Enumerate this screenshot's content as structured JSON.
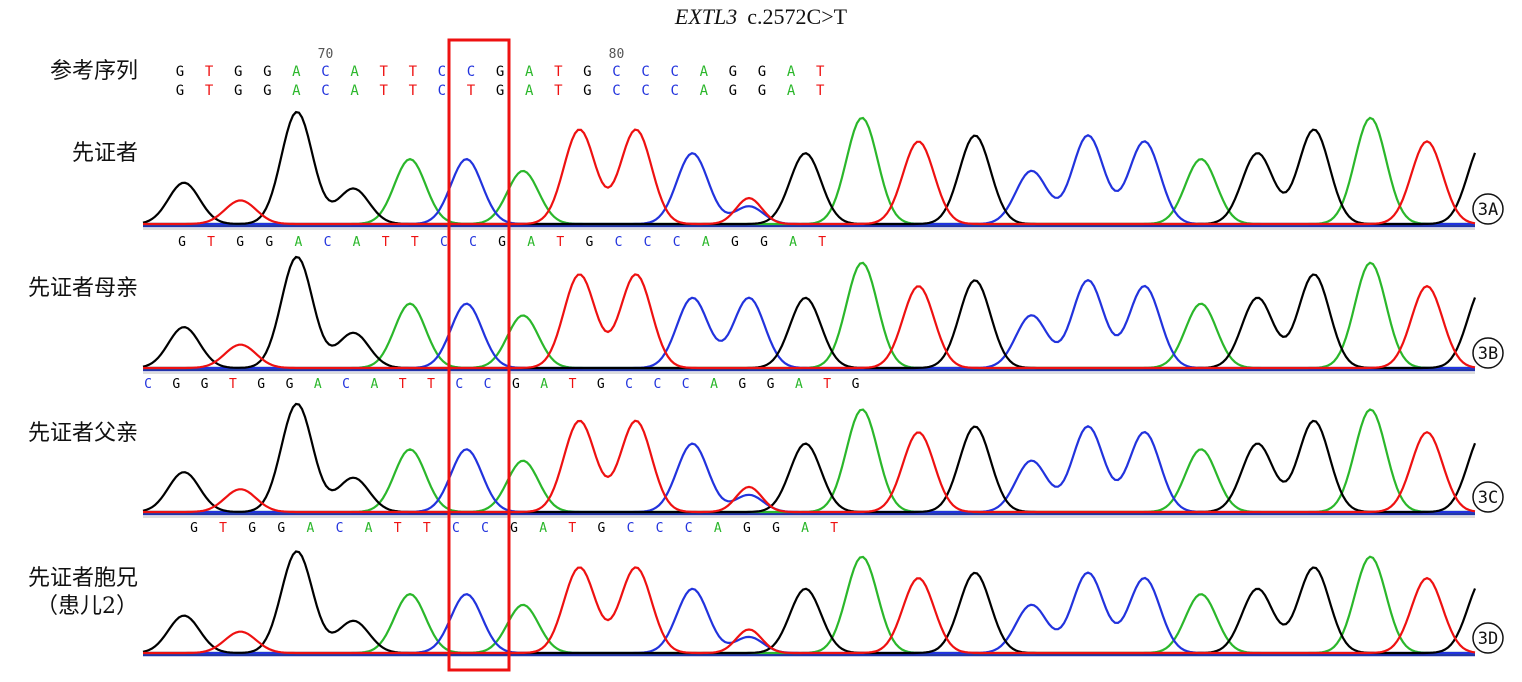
{
  "figure": {
    "gene": "EXTL3",
    "variant": "c.2572C>T"
  },
  "colors": {
    "A": "#2bb72b",
    "C": "#2233dd",
    "G": "#000000",
    "T": "#ee1111",
    "highlight": "#ee1111"
  },
  "reference_label": "参考序列",
  "position_ticks": [
    {
      "label": "70",
      "base_index": 5
    },
    {
      "label": "80",
      "base_index": 15
    }
  ],
  "reference_sequence": {
    "line1": [
      "G",
      "T",
      "G",
      "G",
      "A",
      "C",
      "A",
      "T",
      "T",
      "C",
      "C",
      "G",
      "A",
      "T",
      "G",
      "C",
      "C",
      "C",
      "A",
      "G",
      "G",
      "A",
      "T"
    ],
    "line2": [
      "G",
      "T",
      "G",
      "G",
      "A",
      "C",
      "A",
      "T",
      "T",
      "C",
      "T",
      "G",
      "A",
      "T",
      "G",
      "C",
      "C",
      "C",
      "A",
      "G",
      "G",
      "A",
      "T"
    ]
  },
  "highlight_base_index": 10,
  "tracks": [
    {
      "id": "3A",
      "label_lines": [
        "先证者"
      ],
      "calls": [
        "G",
        "T",
        "G",
        "G",
        "A",
        "C",
        "A",
        "T",
        "T",
        "C",
        "C",
        "G",
        "A",
        "T",
        "G",
        "C",
        "C",
        "C",
        "A",
        "G",
        "G",
        "A",
        "T"
      ],
      "heterozygous_index": 10
    },
    {
      "id": "3B",
      "label_lines": [
        "先证者母亲"
      ],
      "calls": [
        "C",
        "G",
        "G",
        "T",
        "G",
        "G",
        "A",
        "C",
        "A",
        "T",
        "T",
        "C",
        "C",
        "G",
        "A",
        "T",
        "G",
        "C",
        "C",
        "C",
        "A",
        "G",
        "G",
        "A",
        "T",
        "G"
      ],
      "heterozygous_index": null
    },
    {
      "id": "3C",
      "label_lines": [
        "先证者父亲"
      ],
      "calls": [
        "G",
        "T",
        "G",
        "G",
        "A",
        "C",
        "A",
        "T",
        "T",
        "C",
        "C",
        "G",
        "A",
        "T",
        "G",
        "C",
        "C",
        "C",
        "A",
        "G",
        "G",
        "A",
        "T"
      ],
      "heterozygous_index": 10
    },
    {
      "id": "3D",
      "label_lines": [
        "先证者胞兄",
        "（患儿2）"
      ],
      "calls": [],
      "heterozygous_index": 10
    }
  ]
}
